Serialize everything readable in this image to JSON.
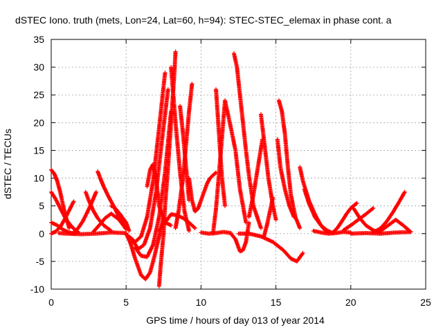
{
  "chart_data": {
    "type": "scatter",
    "title": "dSTEC Iono. truth (mets, Lon=24, Lat=60, h=94): STEC-STEC_elemax in phase cont. a",
    "xlabel": "GPS time / hours of day 013 of year 2014",
    "ylabel": "dSTEC  / TECUs",
    "xlim": [
      0,
      25
    ],
    "ylim": [
      -10,
      35
    ],
    "xticks": [
      0,
      5,
      10,
      15,
      20,
      25
    ],
    "yticks": [
      -10,
      -5,
      0,
      5,
      10,
      15,
      20,
      25,
      30,
      35
    ],
    "grid": true,
    "marker": "plus",
    "color": "#ff0000",
    "series": [
      {
        "x": [
          0.0,
          0.3,
          0.6,
          0.9,
          1.2,
          1.5
        ],
        "y": [
          0.0,
          0.4,
          1.2,
          2.6,
          4.2,
          5.8
        ]
      },
      {
        "x": [
          0.0,
          0.2,
          0.4,
          0.6,
          0.8,
          1.0,
          1.2
        ],
        "y": [
          11.5,
          10.8,
          9.5,
          7.5,
          5.0,
          2.8,
          1.0
        ]
      },
      {
        "x": [
          0.0,
          0.3,
          0.6,
          0.9,
          1.2,
          1.5,
          1.8
        ],
        "y": [
          7.5,
          6.2,
          4.6,
          3.0,
          1.8,
          0.9,
          0.3
        ]
      },
      {
        "x": [
          0.0,
          0.4,
          0.8,
          1.2,
          1.6
        ],
        "y": [
          2.0,
          1.5,
          0.7,
          0.2,
          0.0
        ]
      },
      {
        "x": [
          1.5,
          1.8,
          2.1,
          2.4,
          2.7,
          3.0
        ],
        "y": [
          0.2,
          1.0,
          2.2,
          3.8,
          5.6,
          7.5
        ]
      },
      {
        "x": [
          2.3,
          2.5,
          2.8,
          3.1,
          3.5,
          4.0
        ],
        "y": [
          7.5,
          6.0,
          4.2,
          2.8,
          1.5,
          0.5
        ]
      },
      {
        "x": [
          2.8,
          3.2,
          3.6,
          4.0,
          4.5,
          5.0
        ],
        "y": [
          0.3,
          1.5,
          2.8,
          3.6,
          2.6,
          0.8
        ]
      },
      {
        "x": [
          3.1,
          3.3,
          3.5,
          3.8,
          4.2,
          4.6,
          5.0
        ],
        "y": [
          11.2,
          9.8,
          8.5,
          6.8,
          4.8,
          2.6,
          1.0
        ]
      },
      {
        "x": [
          4.0,
          4.2,
          4.6,
          5.0,
          5.2
        ],
        "y": [
          5.0,
          4.8,
          3.5,
          2.0,
          0.5
        ]
      },
      {
        "x": [
          0.5,
          1.0,
          2.0,
          3.0,
          4.0,
          5.0
        ],
        "y": [
          0.1,
          0.0,
          -0.1,
          0.0,
          0.2,
          0.1
        ]
      },
      {
        "x": [
          5.0,
          5.3,
          5.6,
          6.0,
          6.3,
          6.6,
          6.9,
          7.2,
          7.5
        ],
        "y": [
          0.0,
          -1.8,
          -4.5,
          -7.5,
          -8.2,
          -7.0,
          -4.0,
          -0.5,
          3.0
        ]
      },
      {
        "x": [
          7.2,
          7.3,
          7.5,
          7.6,
          7.8,
          8.0,
          8.2,
          8.3
        ],
        "y": [
          -9.5,
          -6.0,
          0.0,
          5.0,
          12.0,
          20.0,
          28.0,
          32.8
        ]
      },
      {
        "x": [
          5.6,
          6.0,
          6.4,
          6.8,
          7.2,
          7.6,
          8.0
        ],
        "y": [
          -2.5,
          -4.0,
          -4.2,
          -2.0,
          3.0,
          11.0,
          22.0
        ]
      },
      {
        "x": [
          5.4,
          5.8,
          6.2,
          6.6,
          7.0,
          7.4,
          7.8
        ],
        "y": [
          -1.0,
          -2.8,
          -2.0,
          1.0,
          7.5,
          17.0,
          26.0
        ]
      },
      {
        "x": [
          5.2,
          5.6,
          6.0,
          6.4,
          6.8,
          7.2,
          7.6
        ],
        "y": [
          -0.5,
          -1.5,
          -0.5,
          3.0,
          9.5,
          19.0,
          29.0
        ]
      },
      {
        "x": [
          6.4,
          6.6,
          6.8,
          7.0,
          7.2,
          7.6,
          8.0
        ],
        "y": [
          8.5,
          11.5,
          12.5,
          10.0,
          5.0,
          2.0,
          1.5
        ]
      },
      {
        "x": [
          8.0,
          8.3,
          8.6,
          8.9,
          9.2
        ],
        "y": [
          30.0,
          20.0,
          11.0,
          4.0,
          0.5
        ]
      },
      {
        "x": [
          8.3,
          8.5,
          8.8,
          9.0,
          9.2,
          9.4
        ],
        "y": [
          1.0,
          4.0,
          10.0,
          16.0,
          22.0,
          27.0
        ]
      },
      {
        "x": [
          8.6,
          8.8,
          9.0,
          9.2
        ],
        "y": [
          23.0,
          18.0,
          12.0,
          6.0
        ]
      },
      {
        "x": [
          7.2,
          7.6,
          8.0,
          8.4,
          8.8,
          9.2,
          9.6
        ],
        "y": [
          0.5,
          2.0,
          3.5,
          3.3,
          2.8,
          2.0,
          1.0
        ]
      },
      {
        "x": [
          9.2,
          9.4,
          9.6,
          9.8,
          10.0,
          10.2,
          10.4,
          10.6,
          11.0
        ],
        "y": [
          10.0,
          6.0,
          4.0,
          4.5,
          6.0,
          7.5,
          9.0,
          10.0,
          11.0
        ]
      },
      {
        "x": [
          10.8,
          11.0,
          11.3,
          11.6,
          12.0,
          12.3,
          12.6,
          13.0
        ],
        "y": [
          0.0,
          4.5,
          14.0,
          24.0,
          19.0,
          15.0,
          8.0,
          2.0
        ]
      },
      {
        "x": [
          11.0,
          11.2,
          11.4,
          11.6
        ],
        "y": [
          26.0,
          18.0,
          10.0,
          5.0
        ]
      },
      {
        "x": [
          12.2,
          12.4,
          12.6,
          12.8,
          13.0,
          13.2,
          13.5,
          14.0
        ],
        "y": [
          32.5,
          30.0,
          25.0,
          20.0,
          15.0,
          10.5,
          5.0,
          1.0
        ]
      },
      {
        "x": [
          12.0,
          12.3,
          12.6,
          12.8,
          13.0,
          13.2
        ],
        "y": [
          0.0,
          -1.0,
          -3.2,
          -3.0,
          -1.5,
          2.0
        ]
      },
      {
        "x": [
          10.0,
          10.5,
          11.0,
          11.5,
          12.0
        ],
        "y": [
          0.2,
          0.0,
          0.1,
          0.3,
          0.1
        ]
      },
      {
        "x": [
          13.2,
          13.5,
          13.8,
          14.1
        ],
        "y": [
          3.0,
          7.0,
          12.0,
          17.0
        ]
      },
      {
        "x": [
          14.0,
          14.2,
          14.5,
          14.8,
          15.0
        ],
        "y": [
          21.5,
          17.0,
          10.0,
          5.0,
          2.5
        ]
      },
      {
        "x": [
          15.2,
          15.4,
          15.6,
          15.8,
          16.0,
          16.3,
          16.6
        ],
        "y": [
          24.0,
          22.0,
          18.0,
          12.0,
          7.0,
          3.0,
          1.0
        ]
      },
      {
        "x": [
          15.1,
          15.3,
          15.6,
          15.9,
          16.2
        ],
        "y": [
          17.0,
          12.0,
          8.0,
          5.0,
          3.0
        ]
      },
      {
        "x": [
          12.5,
          13.2,
          14.0,
          14.8,
          15.5,
          16.0,
          16.4,
          16.8
        ],
        "y": [
          0.0,
          0.0,
          -0.5,
          -1.5,
          -3.0,
          -4.5,
          -5.0,
          -3.5
        ]
      },
      {
        "x": [
          14.2,
          14.4,
          14.6,
          14.8
        ],
        "y": [
          -0.5,
          1.5,
          4.0,
          6.5
        ]
      },
      {
        "x": [
          16.6,
          16.8,
          17.2,
          17.6,
          18.0,
          18.4
        ],
        "y": [
          12.0,
          9.5,
          6.0,
          3.5,
          1.5,
          0.3
        ]
      },
      {
        "x": [
          16.9,
          17.2,
          17.6,
          18.0,
          18.4,
          18.8
        ],
        "y": [
          8.0,
          5.5,
          3.0,
          1.5,
          0.6,
          0.1
        ]
      },
      {
        "x": [
          17.5,
          18.0,
          18.5,
          19.0,
          19.5,
          20.0
        ],
        "y": [
          0.5,
          0.2,
          0.0,
          0.1,
          0.3,
          0.2
        ]
      },
      {
        "x": [
          18.8,
          19.1,
          19.4,
          19.7,
          20.0,
          20.4
        ],
        "y": [
          0.2,
          1.0,
          2.2,
          3.5,
          4.6,
          5.5
        ]
      },
      {
        "x": [
          19.5,
          20.0,
          20.5,
          21.0,
          21.5
        ],
        "y": [
          0.6,
          1.5,
          2.5,
          3.5,
          4.6
        ]
      },
      {
        "x": [
          20.2,
          20.6,
          21.0,
          21.5,
          22.0
        ],
        "y": [
          4.5,
          2.8,
          1.5,
          0.6,
          0.1
        ]
      },
      {
        "x": [
          21.5,
          22.0,
          22.4,
          22.8,
          23.2,
          23.6
        ],
        "y": [
          0.2,
          1.0,
          2.2,
          3.8,
          5.6,
          7.5
        ]
      },
      {
        "x": [
          22.0,
          22.5,
          23.0,
          23.5,
          24.0
        ],
        "y": [
          0.5,
          1.5,
          2.5,
          1.5,
          0.3
        ]
      },
      {
        "x": [
          20.0,
          21.0,
          22.0,
          23.0,
          24.0
        ],
        "y": [
          0.0,
          0.1,
          0.0,
          0.2,
          0.3
        ]
      }
    ]
  }
}
